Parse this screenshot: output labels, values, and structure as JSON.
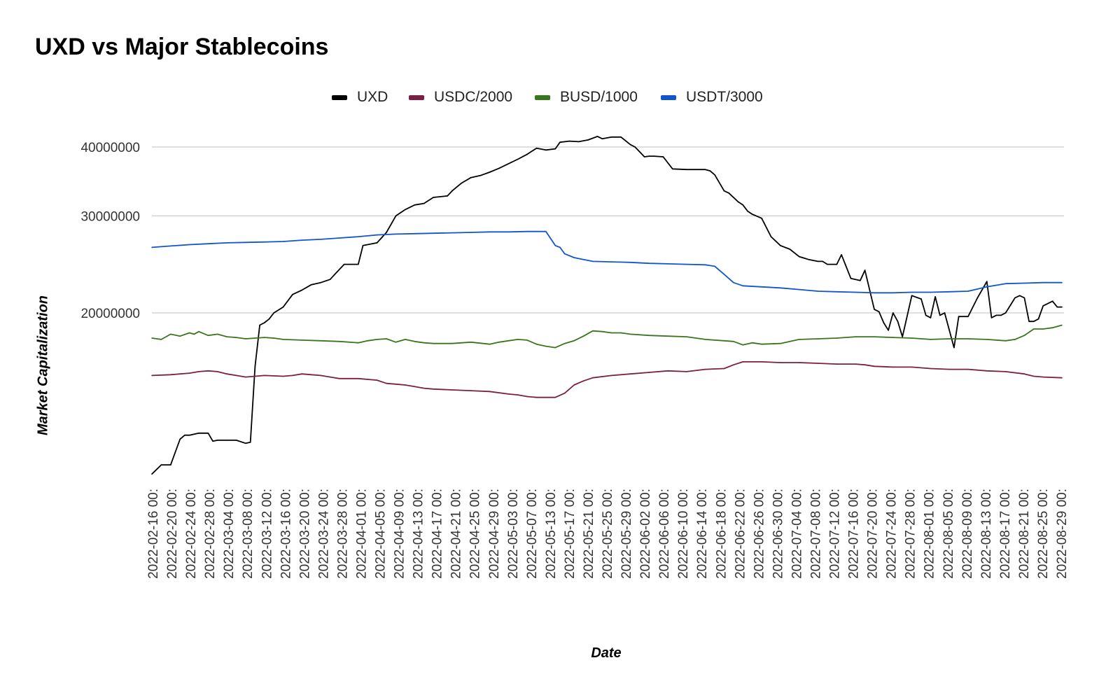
{
  "chart_data": {
    "type": "line",
    "title": "UXD vs Major Stablecoins",
    "xlabel": "Date",
    "ylabel": "Market Capitalization",
    "y_scale": "log",
    "ylim": [
      10000000,
      43000000
    ],
    "y_ticks": [
      20000000,
      30000000,
      40000000
    ],
    "y_tick_labels": [
      "20000000",
      "30000000",
      "40000000"
    ],
    "grid": true,
    "legend_position": "top",
    "x_tick_labels": [
      "2022-02-16 00:",
      "2022-02-20 00:",
      "2022-02-24 00:",
      "2022-02-28 00:",
      "2022-03-04 00:",
      "2022-03-08 00:",
      "2022-03-12 00:",
      "2022-03-16 00:",
      "2022-03-20 00:",
      "2022-03-24 00:",
      "2022-03-28 00:",
      "2022-04-01 00:",
      "2022-04-05 00:",
      "2022-04-09 00:",
      "2022-04-13 00:",
      "2022-04-17 00:",
      "2022-04-21 00:",
      "2022-04-25 00:",
      "2022-04-29 00:",
      "2022-05-03 00:",
      "2022-05-07 00:",
      "2022-05-13 00:",
      "2022-05-17 00:",
      "2022-05-21 00:",
      "2022-05-25 00:",
      "2022-05-29 00:",
      "2022-06-02 00:",
      "2022-06-06 00:",
      "2022-06-10 00:",
      "2022-06-14 00:",
      "2022-06-18 00:",
      "2022-06-22 00:",
      "2022-06-26 00:",
      "2022-06-30 00:",
      "2022-07-04 00:",
      "2022-07-08 00:",
      "2022-07-12 00:",
      "2022-07-16 00:",
      "2022-07-20 00:",
      "2022-07-24 00:",
      "2022-07-28 00:",
      "2022-08-01 00:",
      "2022-08-05 00:",
      "2022-08-09 00:",
      "2022-08-13 00:",
      "2022-08-17 00:",
      "2022-08-21 00:",
      "2022-08-25 00:",
      "2022-08-29 00:"
    ],
    "series": [
      {
        "name": "UXD",
        "color": "#000000",
        "x": [
          "2022-02-16",
          "2022-02-18",
          "2022-02-20",
          "2022-02-22",
          "2022-02-23",
          "2022-02-24",
          "2022-02-26",
          "2022-02-28",
          "2022-03-01",
          "2022-03-02",
          "2022-03-04",
          "2022-03-06",
          "2022-03-08",
          "2022-03-09",
          "2022-03-10",
          "2022-03-11",
          "2022-03-12",
          "2022-03-13",
          "2022-03-14",
          "2022-03-16",
          "2022-03-18",
          "2022-03-20",
          "2022-03-22",
          "2022-03-24",
          "2022-03-26",
          "2022-03-27",
          "2022-03-29",
          "2022-04-01",
          "2022-04-02",
          "2022-04-05",
          "2022-04-07",
          "2022-04-09",
          "2022-04-11",
          "2022-04-13",
          "2022-04-15",
          "2022-04-17",
          "2022-04-20",
          "2022-04-21",
          "2022-04-23",
          "2022-04-25",
          "2022-04-27",
          "2022-04-29",
          "2022-05-01",
          "2022-05-03",
          "2022-05-05",
          "2022-05-07",
          "2022-05-09",
          "2022-05-11",
          "2022-05-13",
          "2022-05-14",
          "2022-05-16",
          "2022-05-18",
          "2022-05-20",
          "2022-05-22",
          "2022-05-23",
          "2022-05-25",
          "2022-05-27",
          "2022-05-29",
          "2022-05-30",
          "2022-06-01",
          "2022-06-02",
          "2022-06-03",
          "2022-06-05",
          "2022-06-07",
          "2022-06-10",
          "2022-06-12",
          "2022-06-14",
          "2022-06-15",
          "2022-06-16",
          "2022-06-18",
          "2022-06-19",
          "2022-06-21",
          "2022-06-22",
          "2022-06-23",
          "2022-06-24",
          "2022-06-26",
          "2022-06-28",
          "2022-06-30",
          "2022-07-02",
          "2022-07-04",
          "2022-07-06",
          "2022-07-08",
          "2022-07-09",
          "2022-07-10",
          "2022-07-12",
          "2022-07-13",
          "2022-07-15",
          "2022-07-17",
          "2022-07-18",
          "2022-07-20",
          "2022-07-21",
          "2022-07-22",
          "2022-07-23",
          "2022-07-24",
          "2022-07-25",
          "2022-07-26",
          "2022-07-28",
          "2022-07-30",
          "2022-07-31",
          "2022-08-01",
          "2022-08-02",
          "2022-08-03",
          "2022-08-04",
          "2022-08-06",
          "2022-08-07",
          "2022-08-08",
          "2022-08-09",
          "2022-08-11",
          "2022-08-13",
          "2022-08-14",
          "2022-08-15",
          "2022-08-16",
          "2022-08-17",
          "2022-08-19",
          "2022-08-20",
          "2022-08-21",
          "2022-08-22",
          "2022-08-23",
          "2022-08-24",
          "2022-08-25",
          "2022-08-27",
          "2022-08-28",
          "2022-08-29"
        ],
        "values": [
          10200000,
          10600000,
          10600000,
          11800000,
          12000000,
          12000000,
          12100000,
          12100000,
          11700000,
          11750000,
          11750000,
          11750000,
          11600000,
          11650000,
          16000000,
          19000000,
          19200000,
          19500000,
          20000000,
          20500000,
          21600000,
          22000000,
          22500000,
          22700000,
          23000000,
          23500000,
          24500000,
          24500000,
          26500000,
          26800000,
          28000000,
          30000000,
          30800000,
          31400000,
          31600000,
          32400000,
          32600000,
          33300000,
          34400000,
          35200000,
          35500000,
          36000000,
          36600000,
          37300000,
          38000000,
          38800000,
          39800000,
          39500000,
          39700000,
          40800000,
          41000000,
          40900000,
          41200000,
          41800000,
          41400000,
          41700000,
          41700000,
          40400000,
          40000000,
          38400000,
          38500000,
          38500000,
          38400000,
          36500000,
          36400000,
          36400000,
          36400000,
          36200000,
          35600000,
          33300000,
          33000000,
          31800000,
          31400000,
          30600000,
          30200000,
          29700000,
          27500000,
          26500000,
          26100000,
          25300000,
          25000000,
          24800000,
          24800000,
          24500000,
          24500000,
          25500000,
          23100000,
          22900000,
          23900000,
          20300000,
          20100000,
          19200000,
          18600000,
          20000000,
          19300000,
          18100000,
          21500000,
          21200000,
          19800000,
          19600000,
          21400000,
          19800000,
          20000000,
          17300000,
          19700000,
          19700000,
          19700000,
          21300000,
          22800000,
          19600000,
          19800000,
          19800000,
          20000000,
          21300000,
          21500000,
          21300000,
          19300000,
          19300000,
          19500000,
          20600000,
          21000000,
          20500000,
          20500000
        ]
      },
      {
        "name": "USDC/2000",
        "color": "#7b1f45",
        "x": [
          "2022-02-16",
          "2022-02-20",
          "2022-02-24",
          "2022-02-26",
          "2022-02-28",
          "2022-03-02",
          "2022-03-04",
          "2022-03-06",
          "2022-03-08",
          "2022-03-12",
          "2022-03-16",
          "2022-03-18",
          "2022-03-20",
          "2022-03-22",
          "2022-03-24",
          "2022-03-26",
          "2022-03-28",
          "2022-04-01",
          "2022-04-05",
          "2022-04-07",
          "2022-04-09",
          "2022-04-11",
          "2022-04-13",
          "2022-04-15",
          "2022-04-17",
          "2022-04-21",
          "2022-04-25",
          "2022-04-29",
          "2022-05-03",
          "2022-05-05",
          "2022-05-07",
          "2022-05-09",
          "2022-05-11",
          "2022-05-13",
          "2022-05-15",
          "2022-05-17",
          "2022-05-19",
          "2022-05-21",
          "2022-05-25",
          "2022-05-29",
          "2022-06-02",
          "2022-06-06",
          "2022-06-10",
          "2022-06-14",
          "2022-06-18",
          "2022-06-20",
          "2022-06-22",
          "2022-06-26",
          "2022-06-30",
          "2022-07-04",
          "2022-07-08",
          "2022-07-12",
          "2022-07-16",
          "2022-07-18",
          "2022-07-20",
          "2022-07-24",
          "2022-07-28",
          "2022-08-01",
          "2022-08-05",
          "2022-08-09",
          "2022-08-13",
          "2022-08-17",
          "2022-08-21",
          "2022-08-23",
          "2022-08-25",
          "2022-08-29"
        ],
        "values": [
          15400000,
          15450000,
          15550000,
          15650000,
          15700000,
          15650000,
          15500000,
          15400000,
          15300000,
          15400000,
          15350000,
          15400000,
          15500000,
          15450000,
          15400000,
          15300000,
          15200000,
          15200000,
          15100000,
          14900000,
          14850000,
          14800000,
          14700000,
          14600000,
          14550000,
          14500000,
          14450000,
          14400000,
          14250000,
          14200000,
          14100000,
          14050000,
          14050000,
          14050000,
          14300000,
          14800000,
          15050000,
          15250000,
          15400000,
          15500000,
          15600000,
          15700000,
          15650000,
          15800000,
          15850000,
          16100000,
          16300000,
          16300000,
          16250000,
          16250000,
          16200000,
          16150000,
          16150000,
          16100000,
          16000000,
          15950000,
          15950000,
          15850000,
          15800000,
          15800000,
          15700000,
          15650000,
          15500000,
          15350000,
          15300000,
          15250000
        ]
      },
      {
        "name": "BUSD/1000",
        "color": "#38761d",
        "x": [
          "2022-02-16",
          "2022-02-18",
          "2022-02-20",
          "2022-02-22",
          "2022-02-24",
          "2022-02-25",
          "2022-02-26",
          "2022-02-28",
          "2022-03-02",
          "2022-03-04",
          "2022-03-06",
          "2022-03-08",
          "2022-03-10",
          "2022-03-12",
          "2022-03-14",
          "2022-03-16",
          "2022-03-20",
          "2022-03-24",
          "2022-03-28",
          "2022-04-01",
          "2022-04-03",
          "2022-04-05",
          "2022-04-07",
          "2022-04-09",
          "2022-04-11",
          "2022-04-13",
          "2022-04-15",
          "2022-04-17",
          "2022-04-21",
          "2022-04-25",
          "2022-04-29",
          "2022-05-01",
          "2022-05-03",
          "2022-05-05",
          "2022-05-07",
          "2022-05-09",
          "2022-05-11",
          "2022-05-13",
          "2022-05-15",
          "2022-05-17",
          "2022-05-19",
          "2022-05-21",
          "2022-05-23",
          "2022-05-25",
          "2022-05-27",
          "2022-05-29",
          "2022-06-02",
          "2022-06-06",
          "2022-06-10",
          "2022-06-14",
          "2022-06-18",
          "2022-06-20",
          "2022-06-22",
          "2022-06-24",
          "2022-06-26",
          "2022-06-30",
          "2022-07-04",
          "2022-07-08",
          "2022-07-12",
          "2022-07-16",
          "2022-07-20",
          "2022-07-24",
          "2022-07-28",
          "2022-08-01",
          "2022-08-05",
          "2022-08-09",
          "2022-08-13",
          "2022-08-17",
          "2022-08-19",
          "2022-08-21",
          "2022-08-23",
          "2022-08-25",
          "2022-08-27",
          "2022-08-29"
        ],
        "values": [
          18000000,
          17900000,
          18300000,
          18150000,
          18400000,
          18300000,
          18500000,
          18200000,
          18300000,
          18100000,
          18050000,
          17950000,
          18000000,
          18050000,
          18000000,
          17900000,
          17850000,
          17800000,
          17750000,
          17650000,
          17800000,
          17900000,
          17950000,
          17700000,
          17900000,
          17750000,
          17650000,
          17600000,
          17600000,
          17700000,
          17550000,
          17700000,
          17800000,
          17900000,
          17850000,
          17550000,
          17400000,
          17300000,
          17600000,
          17800000,
          18150000,
          18550000,
          18500000,
          18400000,
          18400000,
          18300000,
          18200000,
          18150000,
          18100000,
          17900000,
          17800000,
          17750000,
          17500000,
          17650000,
          17550000,
          17600000,
          17900000,
          17950000,
          18000000,
          18100000,
          18100000,
          18050000,
          18000000,
          17900000,
          17950000,
          17950000,
          17900000,
          17800000,
          17900000,
          18200000,
          18700000,
          18700000,
          18800000,
          19000000
        ]
      },
      {
        "name": "USDT/3000",
        "color": "#1155cc",
        "x": [
          "2022-02-16",
          "2022-02-20",
          "2022-02-24",
          "2022-02-28",
          "2022-03-04",
          "2022-03-08",
          "2022-03-12",
          "2022-03-16",
          "2022-03-20",
          "2022-03-24",
          "2022-03-28",
          "2022-04-01",
          "2022-04-05",
          "2022-04-09",
          "2022-04-13",
          "2022-04-17",
          "2022-04-21",
          "2022-04-25",
          "2022-04-29",
          "2022-05-03",
          "2022-05-07",
          "2022-05-09",
          "2022-05-11",
          "2022-05-13",
          "2022-05-14",
          "2022-05-15",
          "2022-05-17",
          "2022-05-19",
          "2022-05-21",
          "2022-05-25",
          "2022-05-29",
          "2022-06-02",
          "2022-06-06",
          "2022-06-10",
          "2022-06-14",
          "2022-06-16",
          "2022-06-18",
          "2022-06-20",
          "2022-06-22",
          "2022-06-26",
          "2022-06-30",
          "2022-07-04",
          "2022-07-08",
          "2022-07-12",
          "2022-07-16",
          "2022-07-20",
          "2022-07-24",
          "2022-07-28",
          "2022-08-01",
          "2022-08-05",
          "2022-08-09",
          "2022-08-13",
          "2022-08-17",
          "2022-08-21",
          "2022-08-25",
          "2022-08-29"
        ],
        "values": [
          26300000,
          26450000,
          26600000,
          26700000,
          26800000,
          26850000,
          26900000,
          26950000,
          27100000,
          27200000,
          27350000,
          27500000,
          27700000,
          27800000,
          27850000,
          27900000,
          27950000,
          28000000,
          28050000,
          28050000,
          28100000,
          28100000,
          28100000,
          26500000,
          26300000,
          25600000,
          25200000,
          25000000,
          24800000,
          24750000,
          24700000,
          24600000,
          24550000,
          24500000,
          24450000,
          24300000,
          23500000,
          22700000,
          22400000,
          22300000,
          22200000,
          22050000,
          21900000,
          21850000,
          21800000,
          21750000,
          21750000,
          21800000,
          21800000,
          21850000,
          21900000,
          22300000,
          22600000,
          22650000,
          22700000,
          22700000
        ]
      }
    ]
  }
}
